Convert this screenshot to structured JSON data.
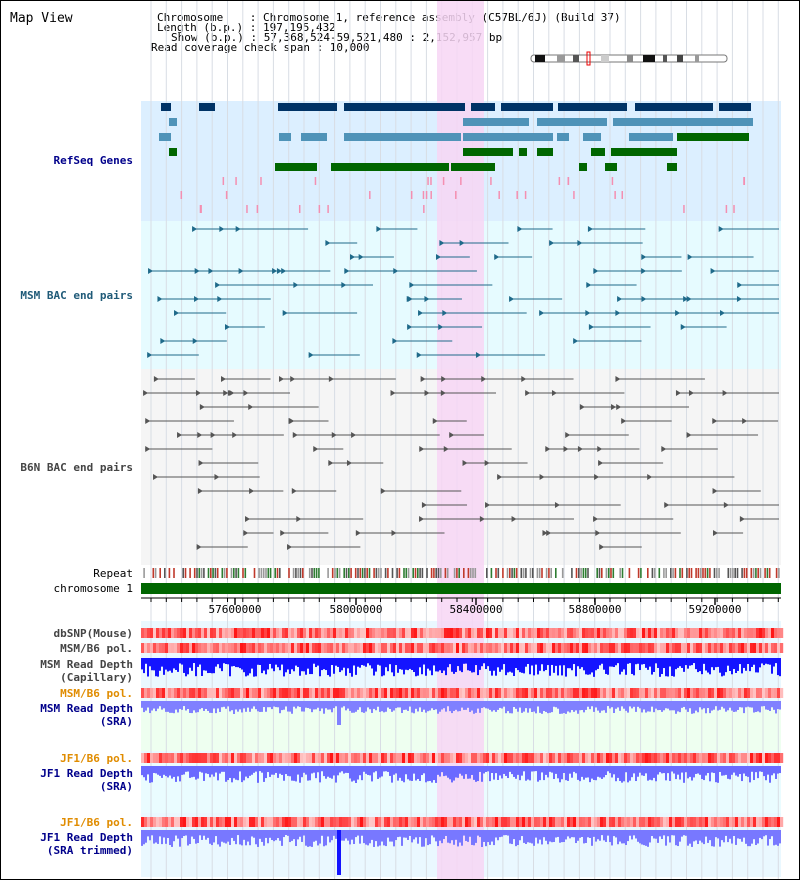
{
  "page": {
    "title": "Map View"
  },
  "header": {
    "lines": [
      "Chromosome    : Chromosome 1, reference assembly (C57BL/6J) (Build 37)",
      "Length (b.p.) : 197,195,432",
      "Show (b.p.) : 57,368,524-59,521,480 : 2,152,957 bp",
      "Read coverage check span : 10,000"
    ]
  },
  "tracks": {
    "refseq": "RefSeq Genes",
    "msm_bac": "MSM BAC end pairs",
    "b6n_bac": "B6N BAC end pairs",
    "repeat": "Repeat",
    "chromosome": "chromosome 1",
    "dbsnp": "dbSNP(Mouse)",
    "msm_b6_pol": "MSM/B6 pol.",
    "msm_rd_cap_1": "MSM Read Depth",
    "msm_rd_cap_2": "(Capillary)",
    "msm_b6_pol2": "MSM/B6 pol.",
    "msm_rd_sra_1": "MSM Read Depth",
    "msm_rd_sra_2": "(SRA)",
    "jf1_b6_pol": "JF1/B6 pol.",
    "jf1_rd_sra_1": "JF1 Read Depth",
    "jf1_rd_sra_2": "(SRA)",
    "jf1_b6_pol2": "JF1/B6 pol.",
    "jf1_rd_trim_1": "JF1 Read Depth",
    "jf1_rd_trim_2": "(SRA trimmed)"
  },
  "axis": {
    "ticks": [
      "57600000",
      "58000000",
      "58400000",
      "58800000",
      "59200000"
    ]
  },
  "colors": {
    "refseq_bg": "#dcefff",
    "msm_bg": "#e6fbff",
    "highlight": "#f7d6f5",
    "gene_navy": "#003366",
    "gene_steel": "#4f93b8",
    "gene_green": "#006600",
    "chrom_green": "#006600",
    "depth_blue": "#1a1aff",
    "depth_light": "#8080ff"
  }
}
